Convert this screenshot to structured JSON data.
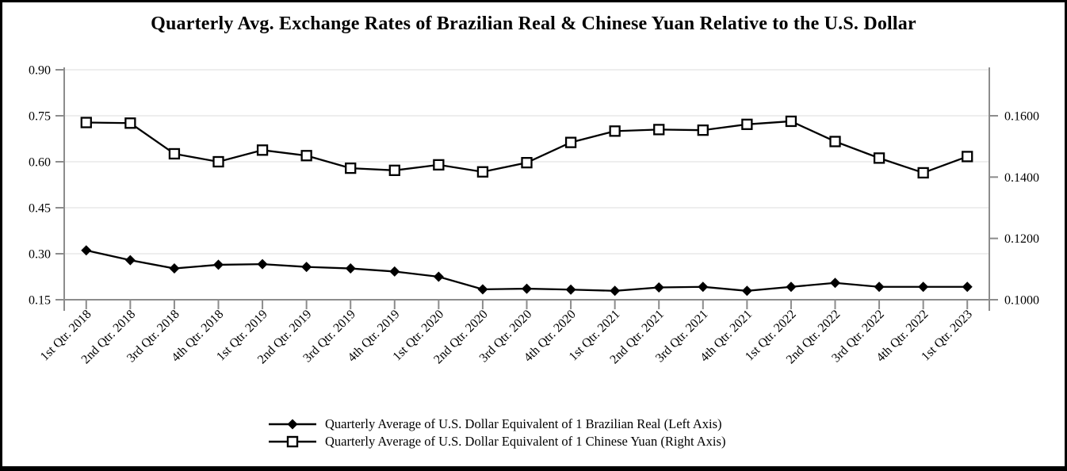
{
  "title": "Quarterly Avg. Exchange Rates of Brazilian Real & Chinese Yuan Relative to the U.S. Dollar",
  "colors": {
    "background": "#ffffff",
    "frame_border": "#000000",
    "axis_line": "#8c8c8c",
    "gridline": "#e9e9e9",
    "series_line": "#000000",
    "square_marker_fill": "#ffffff",
    "text": "#000000"
  },
  "chart_data": {
    "type": "line",
    "title": "Quarterly Avg. Exchange Rates of Brazilian Real & Chinese Yuan Relative to the U.S. Dollar",
    "grid": true,
    "legend_position": "bottom",
    "categories": [
      "1st Qtr. 2018",
      "2nd Qtr. 2018",
      "3rd Qtr. 2018",
      "4th Qtr. 2018",
      "1st Qtr. 2019",
      "2nd Qtr. 2019",
      "3rd Qtr. 2019",
      "4th Qtr. 2019",
      "1st Qtr. 2020",
      "2nd Qtr. 2020",
      "3rd Qtr. 2020",
      "4th Qtr. 2020",
      "1st Qtr. 2021",
      "2nd Qtr. 2021",
      "3rd Qtr. 2021",
      "4th Qtr. 2021",
      "1st Qtr. 2022",
      "2nd Qtr. 2022",
      "3rd Qtr. 2022",
      "4th Qtr. 2022",
      "1st Qtr. 2023"
    ],
    "series": [
      {
        "name": "Quarterly Average of U.S. Dollar Equivalent of 1 Brazilian Real (Left Axis)",
        "axis": "left",
        "marker": "diamond-filled",
        "color": "#000000",
        "values": [
          0.311,
          0.279,
          0.252,
          0.264,
          0.266,
          0.257,
          0.252,
          0.242,
          0.225,
          0.184,
          0.186,
          0.183,
          0.179,
          0.19,
          0.192,
          0.179,
          0.192,
          0.205,
          0.192,
          0.192,
          0.192
        ]
      },
      {
        "name": "Quarterly Average of U.S. Dollar Equivalent of 1 Chinese Yuan (Right Axis)",
        "axis": "right",
        "marker": "square-open",
        "color": "#000000",
        "values": [
          0.1578,
          0.1576,
          0.1476,
          0.145,
          0.1488,
          0.147,
          0.1429,
          0.1422,
          0.144,
          0.1417,
          0.1447,
          0.1513,
          0.155,
          0.1555,
          0.1553,
          0.1572,
          0.1582,
          0.1516,
          0.1462,
          0.1414,
          0.1467
        ]
      }
    ],
    "left_axis": {
      "min": 0.15,
      "max": 0.9,
      "ticks": [
        {
          "label": "0.90",
          "value": 0.9
        },
        {
          "label": "0.75",
          "value": 0.75
        },
        {
          "label": "0.60",
          "value": 0.6
        },
        {
          "label": "0.45",
          "value": 0.45
        },
        {
          "label": "0.30",
          "value": 0.3
        },
        {
          "label": "0.15",
          "value": 0.15
        }
      ]
    },
    "right_axis": {
      "min": 0.1,
      "plot_max": 0.175,
      "ticks": [
        {
          "label": "0.1600",
          "value": 0.16
        },
        {
          "label": "0.1400",
          "value": 0.14
        },
        {
          "label": "0.1200",
          "value": 0.12
        },
        {
          "label": "0.1000",
          "value": 0.1
        }
      ]
    }
  },
  "legend": {
    "items": [
      {
        "label": "Quarterly Average of U.S. Dollar Equivalent of 1 Brazilian Real (Left Axis)"
      },
      {
        "label": "Quarterly Average of U.S. Dollar Equivalent of 1 Chinese Yuan (Right Axis)"
      }
    ]
  }
}
